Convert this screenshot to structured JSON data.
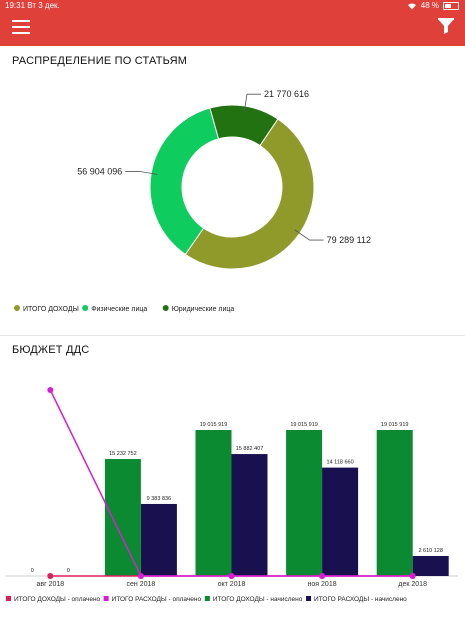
{
  "status_bar": {
    "time": "19:31",
    "date": "Вт 3 дек.",
    "battery": "48 %"
  },
  "header": {
    "menu_icon": "hamburger-menu-icon",
    "filter_icon": "filter-funnel-icon",
    "color": "#e0403a"
  },
  "donut_section": {
    "title": "РАСПРЕДЕЛЕНИЕ ПО СТАТЬЯМ",
    "chart_data": {
      "type": "pie",
      "donut": true,
      "slices": [
        {
          "name": "ИТОГО ДОХОДЫ",
          "value": 79289112,
          "label": "79 289 112",
          "color": "#8f9a2b"
        },
        {
          "name": "Физические лица",
          "value": 56904096,
          "label": "56 904 096",
          "color": "#0fcc5e"
        },
        {
          "name": "Юридические  лица",
          "value": 21770616,
          "label": "21 770 616",
          "color": "#227212"
        }
      ],
      "legend": [
        "ИТОГО ДОХОДЫ",
        "Физические лица",
        "Юридические  лица"
      ],
      "legend_position": "bottom-left"
    }
  },
  "bar_section": {
    "title": "БЮДЖЕТ ДДС",
    "chart_data": {
      "type": "bar",
      "categories": [
        "авг 2018",
        "сен 2018",
        "окт 2018",
        "ноя 2018",
        "дек 2018"
      ],
      "ylim": [
        0,
        19015919
      ],
      "series": [
        {
          "name": "ИТОГО ДОХОДЫ - оплачено",
          "kind": "line",
          "color": "#e01e5a",
          "values": [
            0,
            0,
            0,
            0,
            0
          ]
        },
        {
          "name": "ИТОГО РАСХОДЫ - оплачено",
          "kind": "line",
          "color": "#d61ed6",
          "values": [
            25000000,
            0,
            0,
            0,
            0
          ]
        },
        {
          "name": "ИТОГО ДОХОДЫ - начислено",
          "kind": "bar",
          "color": "#0b8a32",
          "values": [
            0,
            15232752,
            19015919,
            19015919,
            19015919
          ],
          "labels": [
            "0",
            "15 232 752",
            "19 015 919",
            "19 015 919",
            "19 015 919"
          ]
        },
        {
          "name": "ИТОГО РАСХОДЫ - начислено",
          "kind": "bar",
          "color": "#19104f",
          "values": [
            0,
            9383836,
            15882407,
            14118660,
            2610128
          ],
          "labels": [
            "0",
            "9 383 836",
            "15 882 407",
            "14 118 660",
            "2 610 128"
          ]
        }
      ],
      "legend_position": "bottom"
    }
  }
}
